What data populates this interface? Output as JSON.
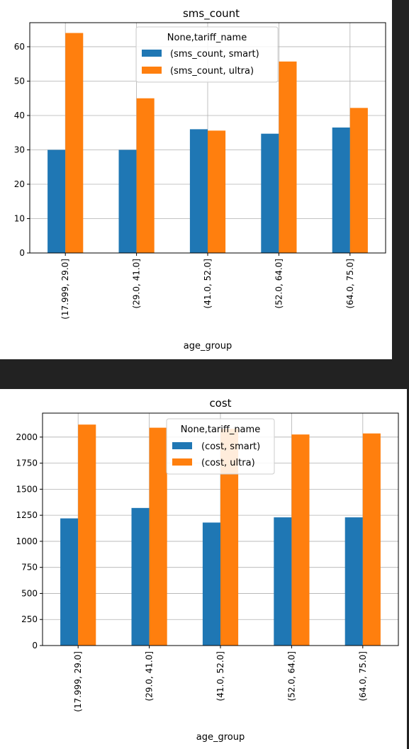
{
  "colors": {
    "smart": "#1f77b4",
    "ultra": "#ff7f0e",
    "grid": "#b0b0b0"
  },
  "chart_data": [
    {
      "type": "bar",
      "title": "sms_count",
      "xlabel": "age_group",
      "ylabel": "",
      "categories": [
        "(17.999, 29.0]",
        "(29.0, 41.0]",
        "(41.0, 52.0]",
        "(52.0, 64.0]",
        "(64.0, 75.0]"
      ],
      "series": [
        {
          "name": "(sms_count, smart)",
          "values": [
            30.0,
            30.0,
            36.0,
            34.7,
            36.5
          ]
        },
        {
          "name": "(sms_count, ultra)",
          "values": [
            64.0,
            45.0,
            35.6,
            55.7,
            42.2
          ]
        }
      ],
      "ylim": [
        0,
        67
      ],
      "yticks": [
        0,
        10,
        20,
        30,
        40,
        50,
        60
      ],
      "grid": true,
      "legend": {
        "title": "None,tariff_name",
        "placement": "upper-center"
      }
    },
    {
      "type": "bar",
      "title": "cost",
      "xlabel": "age_group",
      "ylabel": "",
      "categories": [
        "(17.999, 29.0]",
        "(29.0, 41.0]",
        "(41.0, 52.0]",
        "(52.0, 64.0]",
        "(64.0, 75.0]"
      ],
      "series": [
        {
          "name": "(cost, smart)",
          "values": [
            1220,
            1320,
            1180,
            1230,
            1230
          ]
        },
        {
          "name": "(cost, ultra)",
          "values": [
            2120,
            2090,
            2080,
            2025,
            2035
          ]
        }
      ],
      "ylim": [
        0,
        2230
      ],
      "yticks": [
        0,
        250,
        500,
        750,
        1000,
        1250,
        1500,
        1750,
        2000
      ],
      "grid": true,
      "legend": {
        "title": "None,tariff_name",
        "placement": "upper-center"
      }
    }
  ]
}
